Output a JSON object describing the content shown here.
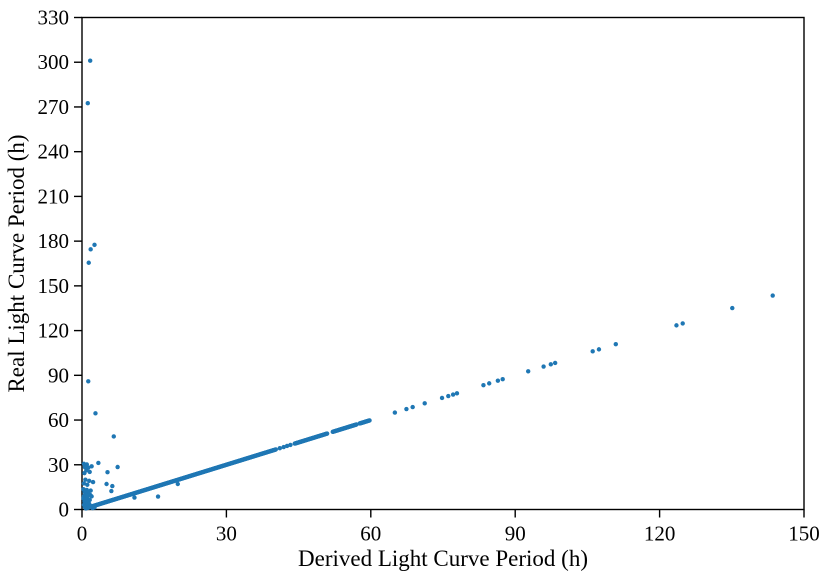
{
  "page": {
    "background_color": "#ffffff"
  },
  "chart_data": {
    "type": "scatter",
    "title": "",
    "xlabel": "Derived Light Curve Period (h)",
    "ylabel": "Real Light Curve Period (h)",
    "xlim": [
      0,
      150
    ],
    "ylim": [
      0,
      330
    ],
    "xticks": [
      0,
      30,
      60,
      90,
      120,
      150
    ],
    "yticks": [
      0,
      30,
      60,
      90,
      120,
      150,
      180,
      210,
      240,
      270,
      300,
      330
    ],
    "grid": false,
    "legend_position": "none",
    "marker_color": "#1f77b4",
    "axis_color": "#000000",
    "identity_relation": "y = x",
    "identity_dense_segments": [
      [
        0.9,
        40.3
      ],
      [
        44.2,
        51.0
      ],
      [
        52.1,
        57.1
      ],
      [
        57.7,
        59.8
      ]
    ],
    "identity_dense_step": 0.12,
    "identity_single_x": [
      41.1,
      41.9,
      42.6,
      43.3,
      65.0,
      67.4,
      68.7,
      71.2,
      74.8,
      76.1,
      77.1,
      77.9,
      83.4,
      84.6,
      86.4,
      87.4,
      92.7,
      95.9,
      97.4,
      98.3,
      106.1,
      107.4,
      110.9,
      123.5,
      124.8,
      135.1,
      143.5
    ],
    "outlier_points": [
      [
        1.7,
        301.0
      ],
      [
        1.2,
        272.5
      ],
      [
        2.6,
        177.5
      ],
      [
        1.8,
        174.5
      ],
      [
        1.4,
        165.5
      ],
      [
        1.3,
        86.0
      ],
      [
        2.8,
        64.5
      ],
      [
        6.6,
        49.0
      ],
      [
        7.4,
        28.5
      ],
      [
        5.3,
        25.0
      ],
      [
        5.1,
        17.1
      ],
      [
        6.3,
        15.7
      ],
      [
        6.1,
        12.4
      ],
      [
        10.9,
        8.0
      ],
      [
        15.8,
        8.7
      ],
      [
        19.9,
        17.1
      ],
      [
        0.4,
        30.6
      ],
      [
        1.0,
        30.2
      ],
      [
        3.4,
        31.2
      ],
      [
        0.6,
        28.4
      ],
      [
        1.3,
        28.0
      ],
      [
        2.0,
        29.0
      ],
      [
        0.9,
        26.3
      ],
      [
        1.6,
        25.2
      ],
      [
        0.5,
        24.4
      ],
      [
        0.7,
        20.0
      ],
      [
        1.5,
        19.2
      ],
      [
        2.3,
        18.4
      ],
      [
        0.4,
        17.5
      ],
      [
        1.1,
        16.6
      ],
      [
        0.3,
        13.6
      ],
      [
        1.0,
        13.1
      ],
      [
        1.8,
        12.7
      ],
      [
        0.5,
        11.8
      ],
      [
        1.3,
        11.3
      ],
      [
        0.8,
        10.2
      ],
      [
        1.7,
        9.8
      ],
      [
        0.4,
        9.0
      ],
      [
        1.1,
        8.4
      ],
      [
        2.0,
        8.8
      ],
      [
        0.3,
        7.4
      ],
      [
        0.9,
        6.9
      ],
      [
        1.6,
        6.4
      ],
      [
        0.5,
        5.5
      ],
      [
        1.2,
        5.0
      ],
      [
        0.7,
        4.2
      ],
      [
        1.5,
        3.8
      ],
      [
        0.4,
        3.1
      ],
      [
        1.0,
        2.6
      ],
      [
        1.8,
        2.2
      ],
      [
        0.6,
        1.6
      ],
      [
        1.3,
        1.2
      ],
      [
        0.8,
        0.7
      ],
      [
        2.2,
        1.0
      ],
      [
        2.6,
        1.4
      ]
    ],
    "marker_radius_px": 2.2
  }
}
